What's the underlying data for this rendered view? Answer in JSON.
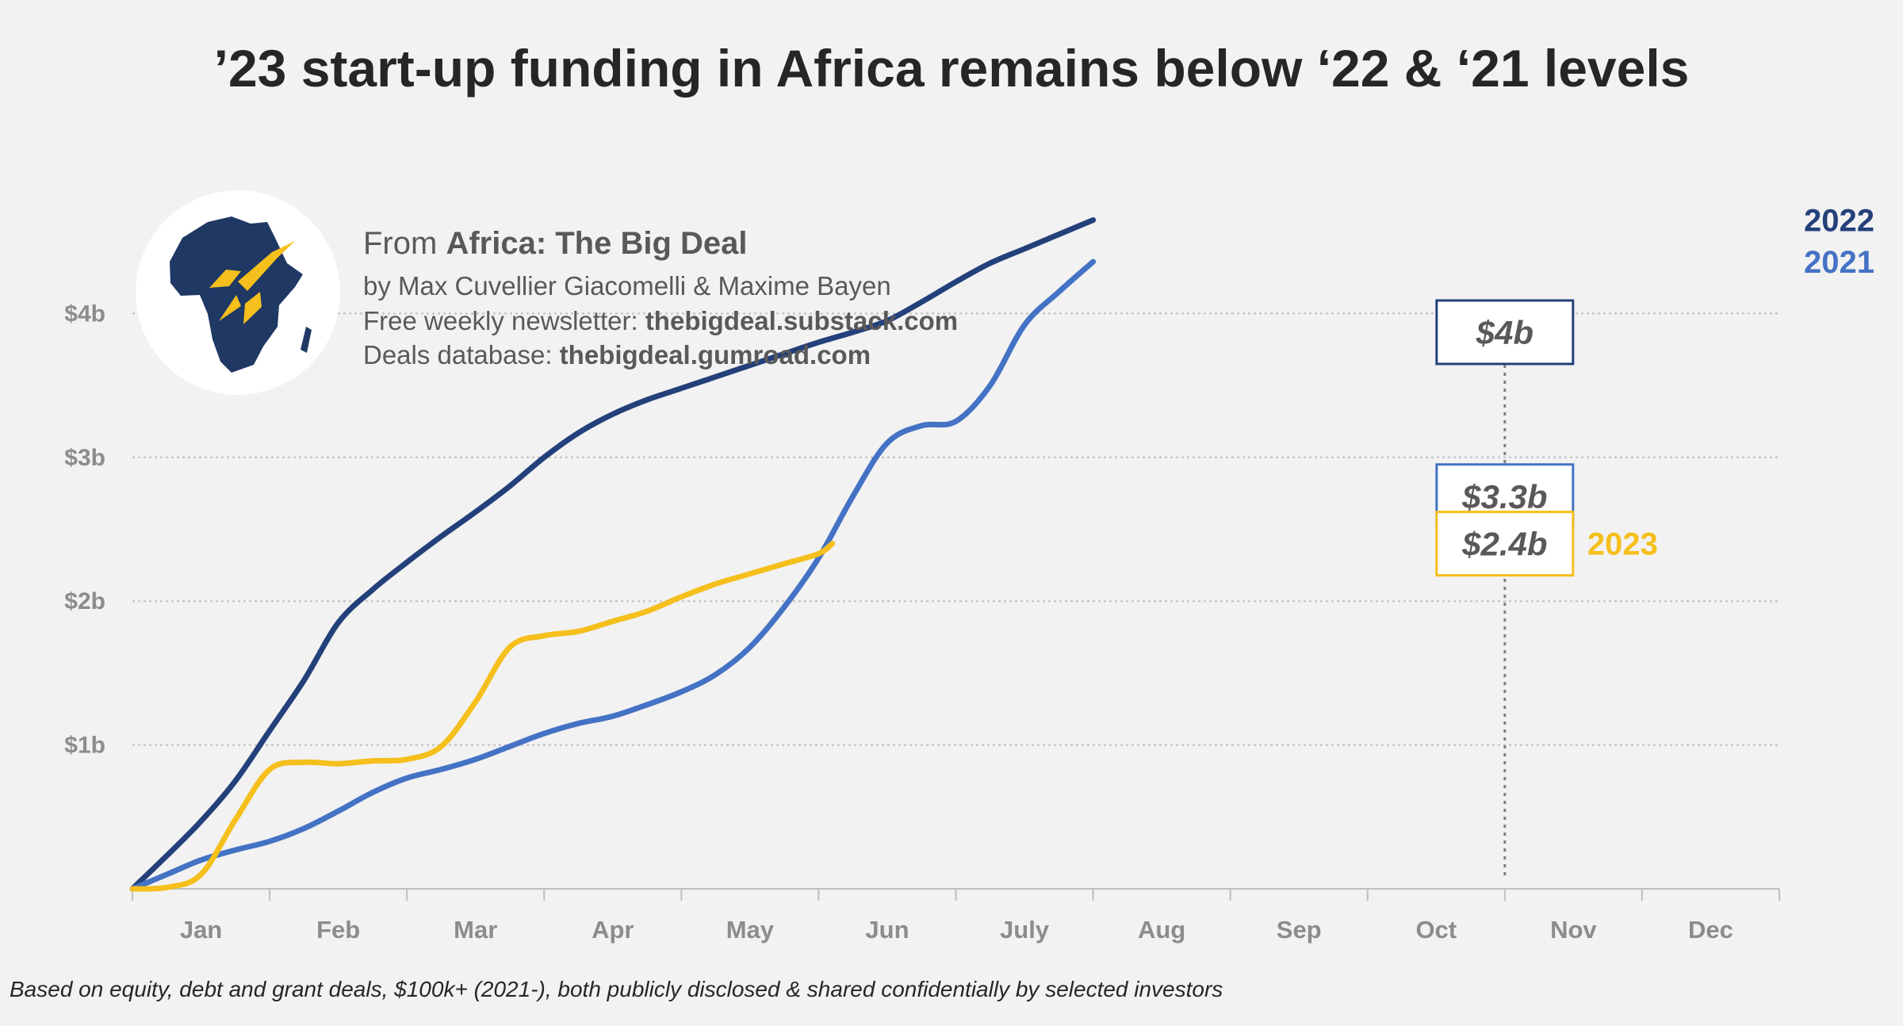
{
  "chart_data": {
    "type": "line",
    "title": "’23 start-up funding in Africa remains below ‘22 & ‘21 levels",
    "x": [
      "Jan",
      "Feb",
      "Mar",
      "Apr",
      "May",
      "Jun",
      "July",
      "Aug",
      "Sep",
      "Oct",
      "Nov",
      "Dec"
    ],
    "y_ticks": [
      "$1b",
      "$2b",
      "$3b",
      "$4b"
    ],
    "ylim": [
      0,
      4.7
    ],
    "unit": "$b",
    "grid": "horizontal dotted",
    "series": [
      {
        "name": "2022",
        "color": "#23407a",
        "points": [
          [
            0,
            0
          ],
          [
            0.5,
            0.23
          ],
          [
            1,
            0.47
          ],
          [
            1.5,
            0.75
          ],
          [
            2,
            1.1
          ],
          [
            2.5,
            1.45
          ],
          [
            3,
            1.85
          ],
          [
            3.5,
            2.08
          ],
          [
            4,
            2.27
          ],
          [
            4.5,
            2.45
          ],
          [
            5,
            2.62
          ],
          [
            5.5,
            2.8
          ],
          [
            6,
            3.0
          ],
          [
            6.5,
            3.17
          ],
          [
            7,
            3.3
          ],
          [
            7.5,
            3.4
          ],
          [
            8,
            3.48
          ],
          [
            8.5,
            3.56
          ],
          [
            9,
            3.64
          ],
          [
            9.5,
            3.72
          ],
          [
            10,
            3.8
          ],
          [
            10.5,
            3.87
          ],
          [
            11,
            3.95
          ],
          [
            11.5,
            4.08
          ],
          [
            12,
            4.22
          ],
          [
            12.5,
            4.35
          ],
          [
            13,
            4.45
          ],
          [
            13.5,
            4.55
          ],
          [
            14,
            4.65
          ]
        ]
      },
      {
        "name": "2021",
        "color": "#4472c4",
        "points": [
          [
            0,
            0
          ],
          [
            0.5,
            0.1
          ],
          [
            1,
            0.2
          ],
          [
            1.5,
            0.27
          ],
          [
            2,
            0.33
          ],
          [
            2.5,
            0.42
          ],
          [
            3,
            0.54
          ],
          [
            3.5,
            0.67
          ],
          [
            4,
            0.77
          ],
          [
            4.5,
            0.83
          ],
          [
            5,
            0.9
          ],
          [
            5.5,
            0.99
          ],
          [
            6,
            1.08
          ],
          [
            6.5,
            1.15
          ],
          [
            7,
            1.2
          ],
          [
            7.5,
            1.28
          ],
          [
            8,
            1.37
          ],
          [
            8.5,
            1.49
          ],
          [
            9,
            1.68
          ],
          [
            9.5,
            1.96
          ],
          [
            10,
            2.3
          ],
          [
            10.5,
            2.73
          ],
          [
            11,
            3.1
          ],
          [
            11.5,
            3.22
          ],
          [
            12,
            3.25
          ],
          [
            12.5,
            3.5
          ],
          [
            13,
            3.92
          ],
          [
            13.5,
            4.15
          ],
          [
            14,
            4.36
          ]
        ]
      },
      {
        "name": "2023",
        "color": "#f5bf1c",
        "points": [
          [
            0,
            0
          ],
          [
            0.5,
            0.01
          ],
          [
            1,
            0.1
          ],
          [
            1.5,
            0.48
          ],
          [
            2,
            0.83
          ],
          [
            2.5,
            0.88
          ],
          [
            3,
            0.87
          ],
          [
            3.5,
            0.89
          ],
          [
            4,
            0.9
          ],
          [
            4.5,
            0.99
          ],
          [
            5,
            1.3
          ],
          [
            5.5,
            1.68
          ],
          [
            6,
            1.76
          ],
          [
            6.5,
            1.79
          ],
          [
            7,
            1.86
          ],
          [
            7.5,
            1.93
          ],
          [
            8,
            2.03
          ],
          [
            8.5,
            2.12
          ],
          [
            9,
            2.19
          ],
          [
            9.5,
            2.26
          ],
          [
            10,
            2.33
          ],
          [
            10.2,
            2.4
          ]
        ]
      }
    ],
    "callouts": [
      {
        "label": "$4b",
        "series": "2022",
        "border": "#23407a"
      },
      {
        "label": "$3.3b",
        "series": "2021",
        "border": "#4472c4"
      },
      {
        "label": "$2.4b",
        "series": "2023",
        "border": "#f5bf1c"
      }
    ],
    "series_labels": [
      {
        "text": "2022",
        "color": "#23407a"
      },
      {
        "text": "2021",
        "color": "#4472c4"
      },
      {
        "text": "2023",
        "color": "#f5bf1c"
      }
    ]
  },
  "source": {
    "from_prefix": "From ",
    "from_name": "Africa: The Big Deal",
    "authors": "by Max Cuvellier Giacomelli & Maxime Bayen",
    "newsletter_label": "Free weekly newsletter: ",
    "newsletter_url": "thebigdeal.substack.com",
    "database_label": "Deals database: ",
    "database_url": "thebigdeal.gumroad.com",
    "logo_colors": {
      "continent": "#1f3864",
      "rocket": "#f5bf1c",
      "circle": "#ffffff"
    }
  },
  "footnote": "Based on equity, debt and grant deals, $100k+ (2021-), both publicly disclosed & shared confidentially by selected investors"
}
